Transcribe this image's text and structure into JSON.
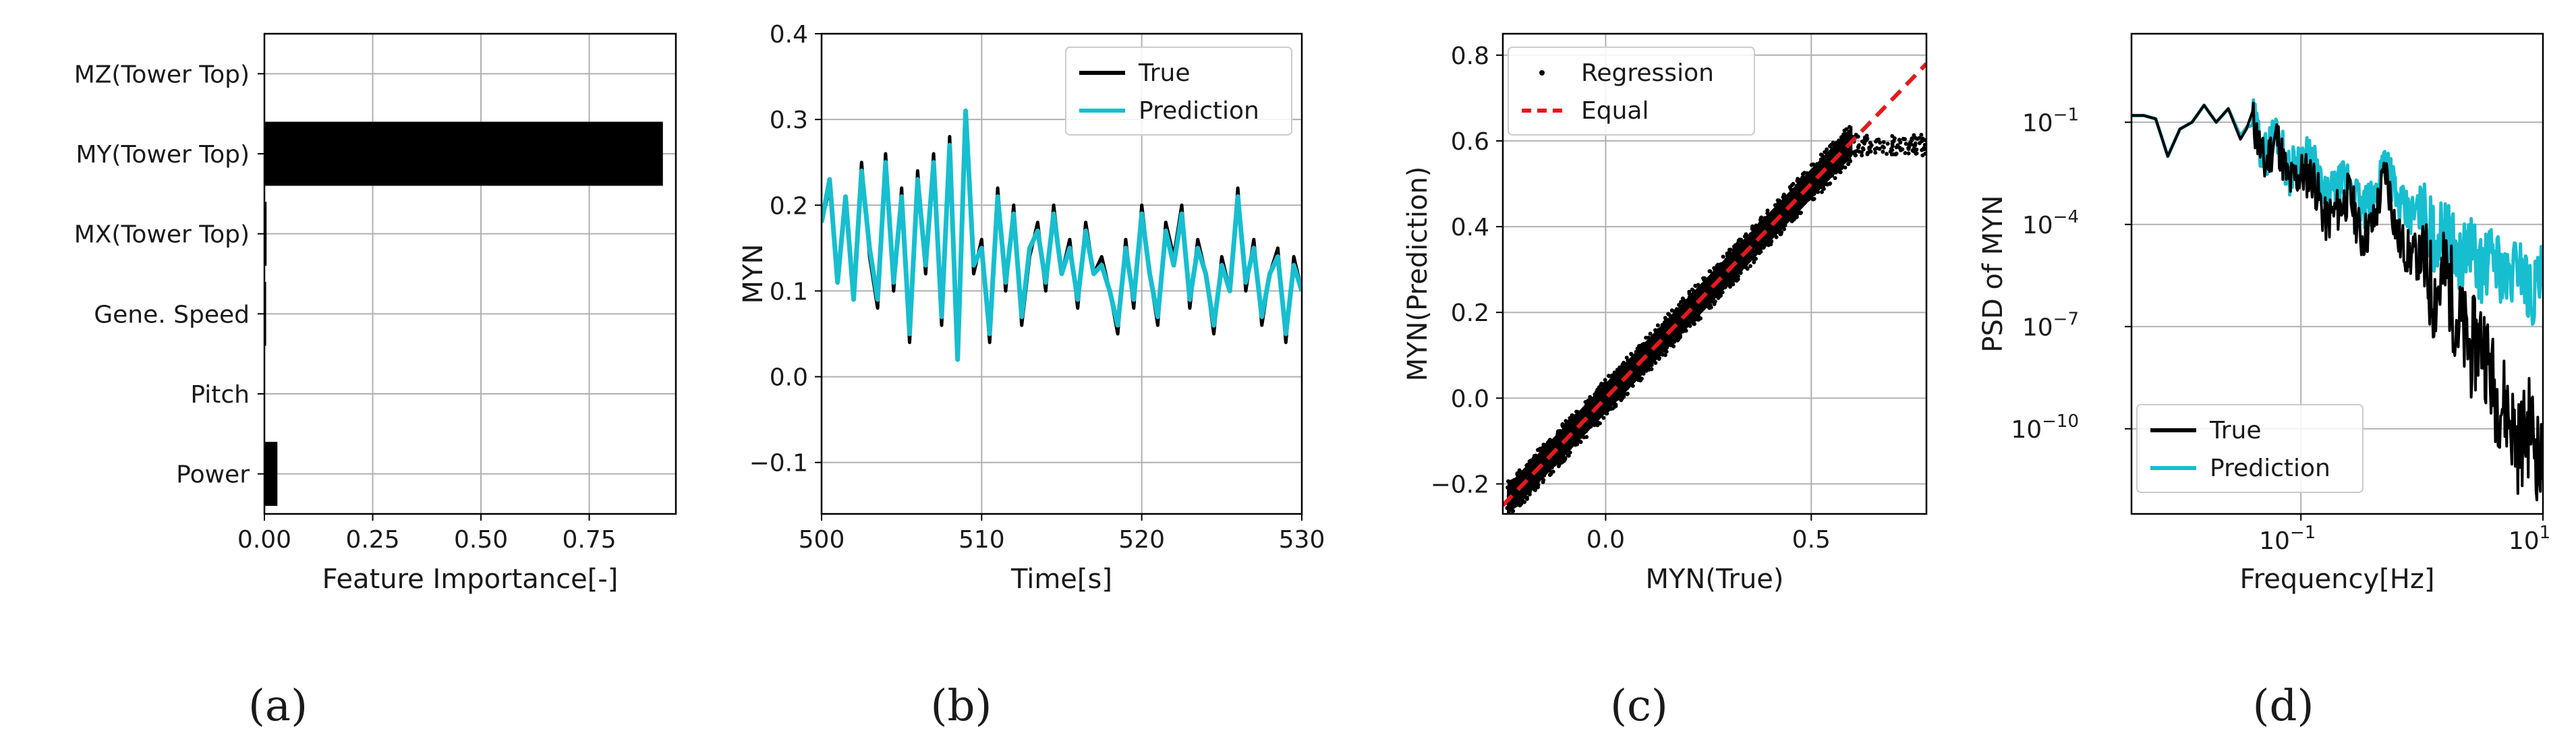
{
  "chart_data": [
    {
      "type": "bar",
      "orientation": "horizontal",
      "panel_label": "(a)",
      "title": "",
      "categories": [
        "MZ(Tower Top)",
        "MY(Tower Top)",
        "MX(Tower Top)",
        "Gene. Speed",
        "Pitch",
        "Power"
      ],
      "values": [
        0.0,
        0.92,
        0.005,
        0.004,
        0.0,
        0.03
      ],
      "xlabel": "Feature Importance[-]",
      "ylabel": "",
      "xlim": [
        0,
        0.95
      ],
      "xticks": [
        0.0,
        0.25,
        0.5,
        0.75
      ],
      "xtick_labels": [
        "0.00",
        "0.25",
        "0.50",
        "0.75"
      ],
      "grid": true,
      "colors": {
        "bar": "#000000"
      }
    },
    {
      "type": "line",
      "panel_label": "(b)",
      "title": "",
      "xlabel": "Time[s]",
      "ylabel": "MYN",
      "xlim": [
        500,
        530
      ],
      "ylim": [
        -0.16,
        0.4
      ],
      "xticks": [
        500,
        510,
        520,
        530
      ],
      "xtick_labels": [
        "500",
        "510",
        "520",
        "530"
      ],
      "yticks": [
        -0.1,
        0.0,
        0.1,
        0.2,
        0.3,
        0.4
      ],
      "ytick_labels": [
        "−0.1",
        "0.0",
        "0.1",
        "0.2",
        "0.3",
        "0.4"
      ],
      "grid": true,
      "legend": {
        "location": "top-right",
        "entries": [
          "True",
          "Prediction"
        ]
      },
      "x": [
        500.0,
        500.5,
        501.0,
        501.5,
        502.0,
        502.5,
        503.0,
        503.5,
        504.0,
        504.5,
        505.0,
        505.5,
        506.0,
        506.5,
        507.0,
        507.5,
        508.0,
        508.5,
        509.0,
        509.5,
        510.0,
        510.5,
        511.0,
        511.5,
        512.0,
        512.5,
        513.0,
        513.5,
        514.0,
        514.5,
        515.0,
        515.5,
        516.0,
        516.5,
        517.0,
        517.5,
        518.0,
        518.5,
        519.0,
        519.5,
        520.0,
        520.5,
        521.0,
        521.5,
        522.0,
        522.5,
        523.0,
        523.5,
        524.0,
        524.5,
        525.0,
        525.5,
        526.0,
        526.5,
        527.0,
        527.5,
        528.0,
        528.5,
        529.0,
        529.5,
        530.0
      ],
      "series": [
        {
          "name": "True",
          "color": "#000000",
          "values": [
            0.18,
            0.22,
            0.12,
            0.2,
            0.1,
            0.25,
            0.14,
            0.08,
            0.26,
            0.1,
            0.22,
            0.04,
            0.24,
            0.12,
            0.26,
            0.06,
            0.28,
            0.02,
            0.3,
            0.12,
            0.16,
            0.04,
            0.22,
            0.1,
            0.2,
            0.06,
            0.14,
            0.18,
            0.1,
            0.2,
            0.12,
            0.16,
            0.08,
            0.18,
            0.12,
            0.14,
            0.1,
            0.05,
            0.16,
            0.08,
            0.2,
            0.12,
            0.06,
            0.18,
            0.14,
            0.2,
            0.08,
            0.16,
            0.12,
            0.05,
            0.14,
            0.1,
            0.22,
            0.1,
            0.16,
            0.06,
            0.12,
            0.15,
            0.04,
            0.14,
            0.1
          ]
        },
        {
          "name": "Prediction",
          "color": "#17becf",
          "values": [
            0.18,
            0.23,
            0.11,
            0.21,
            0.09,
            0.24,
            0.15,
            0.09,
            0.25,
            0.11,
            0.21,
            0.05,
            0.23,
            0.13,
            0.25,
            0.07,
            0.27,
            0.02,
            0.31,
            0.13,
            0.15,
            0.05,
            0.21,
            0.11,
            0.19,
            0.07,
            0.15,
            0.17,
            0.11,
            0.19,
            0.12,
            0.15,
            0.09,
            0.17,
            0.12,
            0.13,
            0.1,
            0.06,
            0.15,
            0.09,
            0.19,
            0.12,
            0.07,
            0.17,
            0.13,
            0.19,
            0.09,
            0.15,
            0.12,
            0.06,
            0.13,
            0.1,
            0.21,
            0.11,
            0.15,
            0.07,
            0.12,
            0.14,
            0.05,
            0.13,
            0.1
          ]
        }
      ]
    },
    {
      "type": "scatter",
      "panel_label": "(c)",
      "title": "",
      "xlabel": "MYN(True)",
      "ylabel": "MYN(Prediction)",
      "xlim": [
        -0.25,
        0.78
      ],
      "ylim": [
        -0.27,
        0.85
      ],
      "xticks": [
        0.0,
        0.5
      ],
      "xtick_labels": [
        "0.0",
        "0.5"
      ],
      "yticks": [
        -0.2,
        0.0,
        0.2,
        0.4,
        0.6,
        0.8
      ],
      "ytick_labels": [
        "−0.2",
        "0.0",
        "0.2",
        "0.4",
        "0.6",
        "0.8"
      ],
      "grid": true,
      "legend": {
        "location": "top-left",
        "entries": [
          "Regression",
          "Equal"
        ]
      },
      "series": [
        {
          "name": "Regression",
          "color": "#000000",
          "x_range": [
            -0.24,
            0.78
          ],
          "relation": "y ≈ x, saturating near 0.6 above x = 0.6"
        },
        {
          "name": "Equal",
          "color": "#e41a1c",
          "style": "dashed",
          "x": [
            -0.25,
            0.78
          ],
          "y": [
            -0.25,
            0.78
          ]
        }
      ]
    },
    {
      "type": "line",
      "scale": "log-log",
      "panel_label": "(d)",
      "title": "",
      "xlabel": "Frequency[Hz]",
      "ylabel": "PSD of MYN",
      "xlim_log10": [
        -2.4,
        1.0
      ],
      "ylim_log10": [
        -12.5,
        1.6
      ],
      "xticks_log10": [
        -1,
        1
      ],
      "yticks_log10": [
        -1,
        -4,
        -7,
        -10
      ],
      "tick_base": "10",
      "xtick_exponents": [
        "−1",
        "1"
      ],
      "ytick_exponents": [
        "−1",
        "−4",
        "−7",
        "−10"
      ],
      "grid": true,
      "legend": {
        "location": "bottom-left",
        "entries": [
          "True",
          "Prediction"
        ]
      },
      "x_log10": [
        -2.4,
        -2.3,
        -2.2,
        -2.1,
        -2.0,
        -1.9,
        -1.8,
        -1.7,
        -1.6,
        -1.5,
        -1.4,
        -1.3,
        -1.2,
        -1.1,
        -1.0,
        -0.9,
        -0.8,
        -0.7,
        -0.6,
        -0.5,
        -0.4,
        -0.3,
        -0.2,
        -0.1,
        0.0,
        0.1,
        0.2,
        0.3,
        0.4,
        0.5,
        0.6,
        0.7,
        0.8,
        0.9,
        1.0
      ],
      "series": [
        {
          "name": "True",
          "color": "#000000",
          "values_log10": [
            -0.8,
            -0.8,
            -0.9,
            -2.0,
            -1.2,
            -1.0,
            -0.5,
            -1.0,
            -0.6,
            -1.5,
            -0.9,
            -2.3,
            -1.4,
            -2.8,
            -2.5,
            -2.6,
            -3.9,
            -3.6,
            -3.1,
            -4.4,
            -4.0,
            -2.4,
            -4.4,
            -4.9,
            -5.0,
            -6.1,
            -5.4,
            -6.9,
            -7.7,
            -7.3,
            -8.9,
            -9.4,
            -10.5,
            -9.8,
            -11.5
          ]
        },
        {
          "name": "Prediction",
          "color": "#17becf",
          "values_log10": [
            -0.8,
            -0.8,
            -0.9,
            -2.0,
            -1.2,
            -1.0,
            -0.5,
            -1.0,
            -0.6,
            -1.4,
            -0.9,
            -2.0,
            -1.2,
            -2.5,
            -2.0,
            -2.2,
            -3.3,
            -3.0,
            -2.6,
            -3.6,
            -3.4,
            -1.8,
            -3.4,
            -3.8,
            -3.5,
            -4.4,
            -4.2,
            -5.0,
            -4.6,
            -5.4,
            -4.8,
            -5.8,
            -5.0,
            -6.1,
            -5.5
          ]
        }
      ]
    }
  ]
}
